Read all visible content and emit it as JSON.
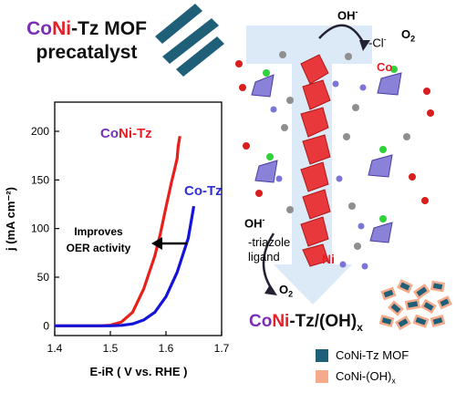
{
  "title": {
    "part_co": "Co",
    "part_ni": "Ni",
    "part_rest": "-Tz MOF",
    "line2": "precatalyst"
  },
  "scheme": {
    "oh_top": "OH",
    "oh_top_sup": "-",
    "cl_loss": "-Cl",
    "cl_sup": "-",
    "o2_top": "O",
    "o2_top_sub": "2",
    "co_label": "Co",
    "oh_bottom": "OH",
    "oh_bottom_sup": "-",
    "triazole_line1": "-triazole",
    "triazole_line2": "ligand",
    "ni_label": "Ni",
    "o2_bottom": "O",
    "o2_bottom_sub": "2",
    "product_co": "Co",
    "product_ni": "Ni",
    "product_rest": "-Tz/(OH)",
    "product_sub": "x"
  },
  "legend": {
    "items": [
      {
        "label": "CoNi-Tz MOF",
        "color": "#1f5f78"
      },
      {
        "label": "CoNi-(OH)",
        "sub": "x",
        "color": "#f4ab8c"
      }
    ]
  },
  "chart_data": {
    "type": "line",
    "xlabel": "E-iR ( V vs. RHE )",
    "ylabel": "j (mA cm⁻²)",
    "xlim": [
      1.4,
      1.7
    ],
    "ylim": [
      -10,
      230
    ],
    "xticks": [
      1.4,
      1.5,
      1.6,
      1.7
    ],
    "yticks": [
      0,
      50,
      100,
      150,
      200
    ],
    "series": [
      {
        "name": "CoNi-Tz",
        "color": "#e8201c",
        "points": [
          [
            1.4,
            0
          ],
          [
            1.48,
            0
          ],
          [
            1.5,
            0.6
          ],
          [
            1.52,
            4
          ],
          [
            1.54,
            14
          ],
          [
            1.56,
            38
          ],
          [
            1.58,
            72
          ],
          [
            1.59,
            95
          ],
          [
            1.6,
            122
          ],
          [
            1.61,
            148
          ],
          [
            1.615,
            160
          ],
          [
            1.62,
            172
          ],
          [
            1.622,
            185
          ],
          [
            1.625,
            195
          ]
        ]
      },
      {
        "name": "Co-Tz",
        "color": "#1414d8",
        "points": [
          [
            1.4,
            0
          ],
          [
            1.5,
            0
          ],
          [
            1.52,
            0.5
          ],
          [
            1.54,
            2
          ],
          [
            1.56,
            6
          ],
          [
            1.58,
            14
          ],
          [
            1.6,
            30
          ],
          [
            1.62,
            55
          ],
          [
            1.64,
            90
          ],
          [
            1.65,
            123
          ]
        ]
      }
    ],
    "annotations": [
      {
        "text_line1": "Improves",
        "text_line2": "OER activity"
      }
    ]
  }
}
